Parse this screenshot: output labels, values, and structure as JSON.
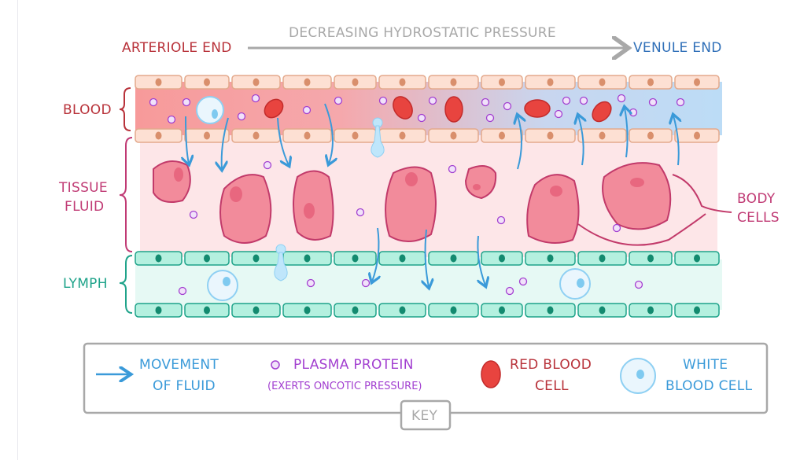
{
  "header": {
    "arteriole_end": "ARTERIOLE END",
    "pressure_label": "DECREASING HYDROSTATIC PRESSURE",
    "venule_end": "VENULE END"
  },
  "regions": {
    "blood": "BLOOD",
    "tissue_line1": "TISSUE",
    "tissue_line2": "FLUID",
    "lymph": "LYMPH",
    "body_cells_line1": "BODY",
    "body_cells_line2": "CELLS"
  },
  "key": {
    "title": "KEY",
    "movement_line1": "MOVEMENT",
    "movement_line2": "OF FLUID",
    "protein_line1": "PLASMA PROTEIN",
    "protein_line2": "(EXERTS ONCOTIC PRESSURE)",
    "rbc_line1": "RED BLOOD",
    "rbc_line2": "CELL",
    "wbc_line1": "WHITE",
    "wbc_line2": "BLOOD CELL"
  },
  "colors": {
    "arteriole": "#b8323a",
    "venule": "#2f6fb8",
    "arrow": "#3a9ad9",
    "protein": "#a23fd0",
    "tissue_label": "#c03a74",
    "lymph_label": "#1fa38a",
    "grey": "#a8a8a8"
  }
}
